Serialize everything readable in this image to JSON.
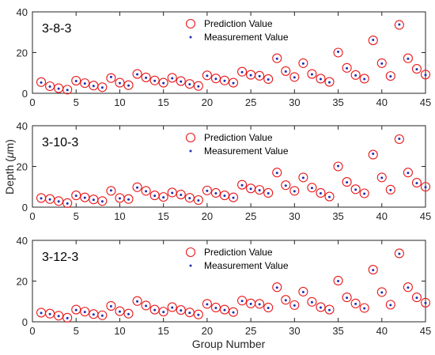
{
  "colors": {
    "prediction": "#e8191b",
    "measurement": "#1f2fb5",
    "axis": "#262626"
  },
  "chart_data": {
    "type": "scatter",
    "xlabel": "Group Number",
    "ylabel": "Depth (μm)",
    "ylabel_main": "Depth (",
    "ylabel_unit_symbol": "μ",
    "ylabel_unit": "m)",
    "xlim": [
      0,
      45
    ],
    "ylim": [
      0,
      40
    ],
    "xticks": [
      0,
      5,
      10,
      15,
      20,
      25,
      30,
      35,
      40,
      45
    ],
    "yticks": [
      0,
      20,
      40
    ],
    "legend_placement": "top-center",
    "x": [
      1,
      2,
      3,
      4,
      5,
      6,
      7,
      8,
      9,
      10,
      11,
      12,
      13,
      14,
      15,
      16,
      17,
      18,
      19,
      20,
      21,
      22,
      23,
      24,
      25,
      26,
      27,
      28,
      29,
      30,
      31,
      32,
      33,
      34,
      35,
      36,
      37,
      38,
      39,
      40,
      41,
      42,
      43,
      44,
      45
    ],
    "panels": [
      {
        "title": "3-8-3",
        "series": [
          {
            "name": "Prediction Value",
            "values": [
              5.5,
              3.5,
              2.5,
              1.8,
              6.2,
              5.0,
              3.8,
              3.0,
              7.5,
              5.2,
              4.0,
              9.5,
              7.8,
              6.3,
              5.2,
              7.6,
              6.0,
              4.6,
              3.6,
              8.8,
              7.3,
              6.3,
              5.2,
              10.6,
              9.1,
              8.6,
              7.0,
              17.2,
              10.9,
              8.0,
              14.8,
              9.5,
              7.2,
              5.6,
              20.0,
              12.5,
              9.0,
              7.2,
              26.0,
              14.8,
              8.5,
              33.6,
              17.2,
              12.0,
              9.2
            ]
          },
          {
            "name": "Measurement Value",
            "values": [
              5.3,
              3.3,
              2.3,
              1.6,
              6.0,
              4.8,
              3.6,
              2.8,
              8.0,
              5.0,
              3.8,
              9.3,
              7.6,
              6.1,
              5.0,
              7.4,
              5.8,
              4.4,
              3.4,
              8.6,
              7.1,
              6.1,
              5.0,
              10.4,
              8.9,
              8.4,
              6.8,
              17.0,
              10.7,
              7.8,
              14.6,
              9.3,
              7.0,
              5.4,
              20.4,
              12.3,
              8.8,
              7.0,
              26.2,
              14.6,
              8.3,
              33.8,
              17.0,
              11.8,
              9.0
            ]
          }
        ]
      },
      {
        "title": "3-10-3",
        "series": [
          {
            "name": "Prediction Value",
            "values": [
              4.5,
              4.0,
              3.0,
              2.0,
              5.8,
              4.8,
              3.8,
              3.0,
              8.0,
              4.5,
              4.0,
              9.8,
              8.0,
              5.8,
              5.0,
              7.2,
              6.2,
              4.6,
              3.5,
              8.2,
              7.0,
              5.8,
              4.8,
              11.0,
              9.2,
              8.5,
              7.0,
              17.0,
              10.8,
              8.0,
              14.6,
              9.6,
              7.0,
              5.2,
              20.0,
              12.4,
              8.8,
              6.8,
              25.8,
              14.6,
              8.6,
              33.4,
              17.0,
              12.0,
              10.0
            ]
          },
          {
            "name": "Measurement Value",
            "values": [
              4.3,
              3.8,
              2.8,
              1.8,
              5.6,
              4.6,
              3.6,
              2.8,
              8.2,
              4.3,
              3.8,
              9.6,
              7.8,
              5.6,
              4.8,
              7.0,
              6.0,
              4.4,
              3.3,
              8.0,
              6.8,
              5.6,
              4.6,
              10.8,
              9.0,
              8.3,
              6.8,
              16.8,
              10.6,
              7.8,
              14.4,
              9.4,
              6.8,
              5.0,
              20.2,
              12.2,
              8.6,
              6.6,
              26.2,
              14.4,
              8.4,
              33.6,
              16.8,
              11.8,
              9.8
            ]
          }
        ]
      },
      {
        "title": "3-12-3",
        "series": [
          {
            "name": "Prediction Value",
            "values": [
              4.5,
              4.0,
              3.0,
              2.0,
              6.0,
              5.0,
              3.8,
              3.2,
              7.8,
              5.2,
              4.0,
              10.2,
              8.0,
              6.0,
              5.0,
              7.2,
              5.8,
              4.6,
              3.6,
              8.8,
              7.0,
              6.0,
              4.8,
              10.4,
              9.0,
              8.8,
              7.0,
              17.0,
              10.8,
              8.2,
              14.8,
              9.8,
              7.2,
              6.0,
              20.2,
              12.0,
              9.0,
              6.8,
              25.6,
              14.6,
              8.4,
              33.6,
              17.0,
              12.0,
              9.4
            ]
          },
          {
            "name": "Measurement Value",
            "values": [
              4.3,
              3.8,
              2.8,
              1.8,
              5.8,
              4.8,
              3.6,
              3.0,
              7.6,
              5.0,
              3.8,
              10.0,
              7.8,
              5.8,
              4.8,
              7.0,
              5.6,
              4.4,
              3.4,
              8.6,
              6.8,
              5.8,
              4.6,
              10.2,
              8.8,
              8.6,
              6.8,
              16.8,
              10.6,
              8.0,
              14.6,
              9.6,
              7.0,
              5.8,
              20.0,
              11.8,
              8.8,
              6.6,
              25.4,
              14.4,
              8.2,
              33.4,
              16.8,
              11.8,
              9.2
            ]
          }
        ]
      }
    ]
  }
}
